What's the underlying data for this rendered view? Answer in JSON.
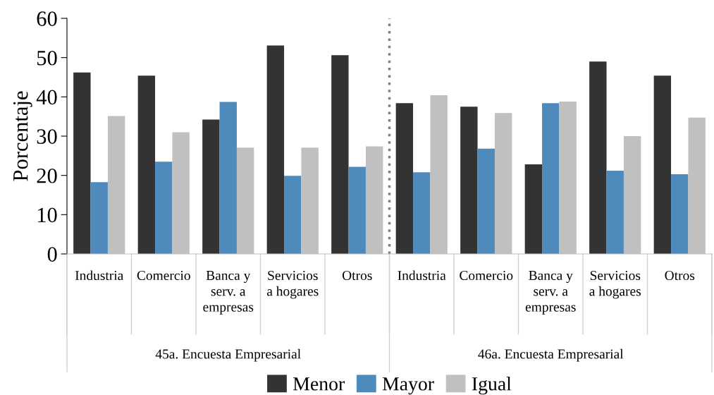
{
  "chart_data": {
    "type": "bar",
    "ylabel": "Porcentaje",
    "categories": [
      "Industria",
      "Comercio",
      "Banca y\nserv. a\nempresas",
      "Servicios\na hogares",
      "Otros",
      "Industria",
      "Comercio",
      "Banca y\nserv. a\nempresas",
      "Servicios\na hogares",
      "Otros"
    ],
    "series": [
      {
        "name": "Menor",
        "color": "#333333",
        "values": [
          46.2,
          45.4,
          34.2,
          53.1,
          50.6,
          38.4,
          37.5,
          22.8,
          49.0,
          45.4
        ]
      },
      {
        "name": "Mayor",
        "color": "#4f8abd",
        "values": [
          18.3,
          23.5,
          38.7,
          19.9,
          22.2,
          20.8,
          26.8,
          38.4,
          21.2,
          20.3
        ]
      },
      {
        "name": "Igual",
        "color": "#c0c0c0",
        "values": [
          35.1,
          31.0,
          27.1,
          27.1,
          27.4,
          40.4,
          35.9,
          38.8,
          30.0,
          34.7
        ]
      }
    ],
    "annotations": [
      "45a. Encuesta Empresarial",
      "46a. Encuesta Empresarial"
    ],
    "ylim": [
      0,
      60
    ],
    "yticks": [
      0,
      10,
      20,
      30,
      40,
      50,
      60
    ],
    "grid": false,
    "legend": "bottom"
  }
}
